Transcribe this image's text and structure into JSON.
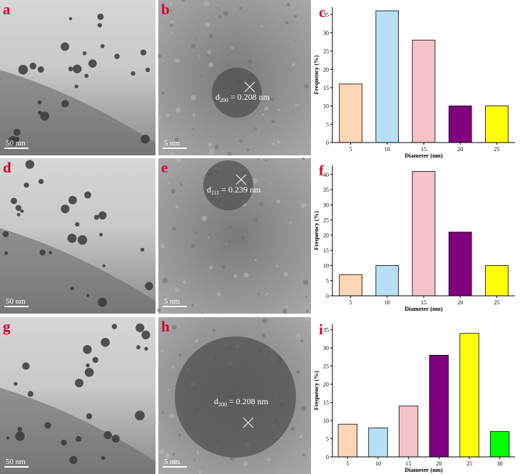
{
  "panels": [
    {
      "label": "a",
      "scale_bar": "50 nm"
    },
    {
      "label": "b",
      "scale_bar": "5 nm",
      "annotation": {
        "symbol": "d",
        "subscript": "200",
        "text": "= 0.208 nm"
      }
    },
    {
      "label": "d",
      "scale_bar": "50 nm"
    },
    {
      "label": "e",
      "scale_bar": "5 nm",
      "annotation": {
        "symbol": "d",
        "subscript": "111",
        "text": "= 0.239 nm"
      }
    },
    {
      "label": "g",
      "scale_bar": "50 nm"
    },
    {
      "label": "h",
      "scale_bar": "5 nm",
      "annotation": {
        "symbol": "d",
        "subscript": "200",
        "text": "= 0.208 nm"
      }
    }
  ],
  "chart_data": [
    {
      "type": "bar",
      "panel_label": "c",
      "x_label": "Diameter (nm)",
      "y_label": "Frequency (%)",
      "categories": [
        "5",
        "10",
        "15",
        "20",
        "25"
      ],
      "values": [
        16,
        36,
        28,
        10,
        10
      ],
      "colors": [
        "#fcd5b4",
        "#b7dff5",
        "#f4c2c7",
        "#800080",
        "#ffff00"
      ],
      "ylim": [
        0,
        37
      ],
      "yticks": [
        0,
        5,
        10,
        15,
        20,
        25,
        30,
        35
      ]
    },
    {
      "type": "bar",
      "panel_label": "f",
      "x_label": "Diameter (nm)",
      "y_label": "Frequency (%)",
      "categories": [
        "5",
        "10",
        "15",
        "20",
        "25"
      ],
      "values": [
        7,
        10,
        41,
        21,
        10
      ],
      "colors": [
        "#fcd5b4",
        "#b7dff5",
        "#f4c2c7",
        "#800080",
        "#ffff00"
      ],
      "ylim": [
        0,
        43
      ],
      "yticks": [
        0,
        5,
        10,
        15,
        20,
        25,
        30,
        35,
        40
      ]
    },
    {
      "type": "bar",
      "panel_label": "i",
      "x_label": "Diameter (nm)",
      "y_label": "Frequency (%)",
      "categories": [
        "5",
        "10",
        "15",
        "20",
        "25",
        "30"
      ],
      "values": [
        9,
        8,
        14,
        28,
        34,
        7
      ],
      "colors": [
        "#fcd5b4",
        "#b7dff5",
        "#f4c2c7",
        "#800080",
        "#ffff00",
        "#00ff00"
      ],
      "ylim": [
        0,
        36.5
      ],
      "yticks": [
        0,
        5,
        10,
        15,
        20,
        25,
        30,
        35
      ]
    }
  ]
}
